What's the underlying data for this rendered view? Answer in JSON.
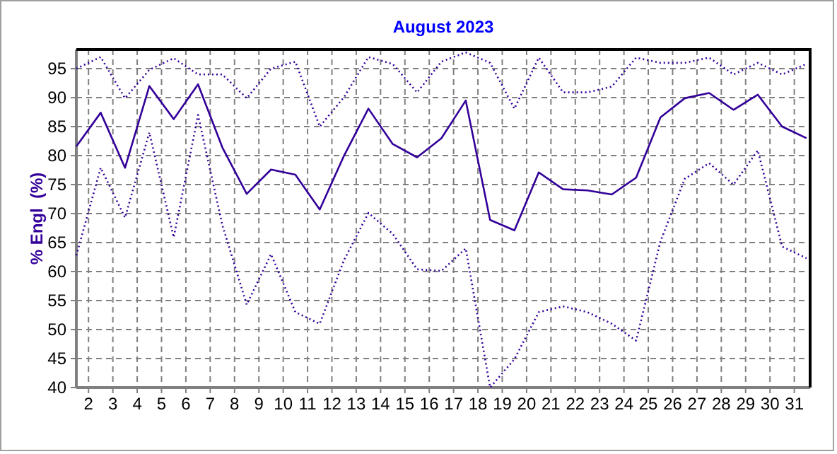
{
  "chart_data": {
    "type": "line",
    "title": "August 2023",
    "ylabel": "% Engl  (%)",
    "xlim": [
      1.5,
      31.65
    ],
    "xticks": [
      2,
      3,
      4,
      5,
      6,
      7,
      8,
      9,
      10,
      11,
      12,
      13,
      14,
      15,
      16,
      17,
      18,
      19,
      20,
      21,
      22,
      23,
      24,
      25,
      26,
      27,
      28,
      29,
      30,
      31
    ],
    "ylim": [
      40,
      98.3
    ],
    "yticks": [
      40,
      45,
      50,
      55,
      60,
      65,
      70,
      75,
      80,
      85,
      90,
      95
    ],
    "grid": true,
    "marker": "none",
    "x": [
      1.5,
      2.5,
      3.5,
      4.5,
      5.5,
      6.5,
      7.5,
      8.5,
      9.5,
      10.5,
      11.5,
      12.5,
      13.5,
      14.5,
      15.5,
      16.5,
      17.5,
      18.5,
      19.5,
      20.5,
      21.5,
      22.5,
      23.5,
      24.5,
      25.5,
      26.5,
      27.5,
      28.5,
      29.5,
      30.5,
      31.5
    ],
    "series": [
      {
        "color": "#330099",
        "line_style": "dotted",
        "values": [
          95.0,
          97.0,
          89.9,
          94.8,
          96.8,
          94.0,
          94.0,
          89.9,
          95.0,
          96.2,
          85.0,
          90.1,
          97.0,
          95.8,
          90.9,
          96.2,
          97.8,
          96.0,
          88.1,
          96.9,
          90.9,
          90.9,
          91.9,
          96.9,
          96.0,
          96.0,
          96.9,
          94.0,
          96.0,
          94.0,
          95.8
        ]
      },
      {
        "color": "#330099",
        "line_style": "solid",
        "values": [
          81.6,
          87.4,
          77.9,
          92.0,
          86.3,
          92.3,
          81.4,
          73.4,
          77.6,
          76.7,
          70.7,
          80.0,
          88.1,
          82.0,
          79.7,
          83.0,
          89.5,
          68.9,
          67.1,
          77.1,
          74.2,
          74.0,
          73.3,
          76.2,
          86.6,
          89.9,
          90.8,
          87.9,
          90.5,
          85.0,
          83.0
        ]
      },
      {
        "color": "#330099",
        "line_style": "dotted",
        "values": [
          62.8,
          77.9,
          69.3,
          84.0,
          65.9,
          87.0,
          68.0,
          54.3,
          63.0,
          53.0,
          51.0,
          62.0,
          70.1,
          66.5,
          60.4,
          60.1,
          64.0,
          40.0,
          44.9,
          53.0,
          54.0,
          53.0,
          51.0,
          48.1,
          65.2,
          76.0,
          78.7,
          75.0,
          80.9,
          64.3,
          62.3
        ]
      }
    ]
  }
}
